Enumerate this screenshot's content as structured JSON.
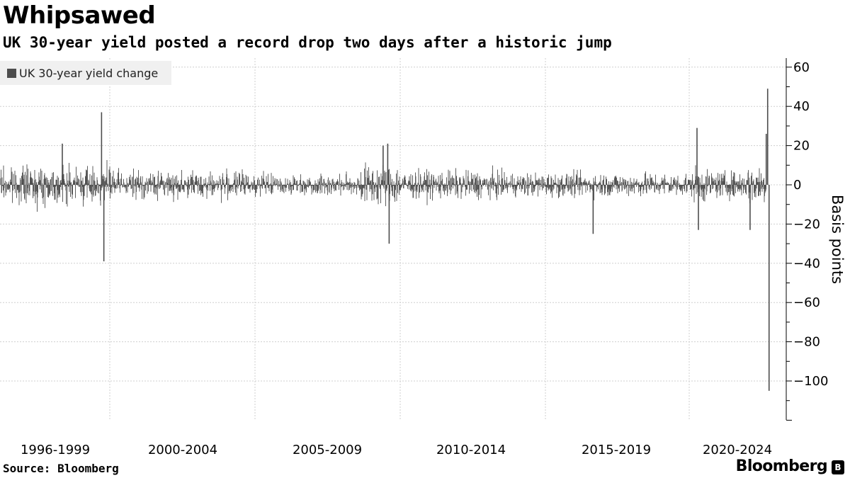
{
  "header": {
    "title": "Whipsawed",
    "subtitle": "UK 30-year yield posted a record drop two days after a historic jump"
  },
  "footer": {
    "source": "Source: Bloomberg",
    "brand": "Bloomberg",
    "brand_icon": "bloomberg-terminal-icon"
  },
  "chart_data": {
    "type": "bar",
    "title": "",
    "legend": {
      "entries": [
        "UK 30-year yield change"
      ],
      "placement": "top-left"
    },
    "series": [
      {
        "name": "UK 30-year yield change",
        "color": "#4d4d4d",
        "extremes": [
          {
            "date": "1998-09",
            "value": 37
          },
          {
            "date": "1998-10",
            "value": -39
          },
          {
            "date": "1997-04",
            "value": 21
          },
          {
            "date": "2008-11",
            "value": 20
          },
          {
            "date": "2009-01",
            "value": 21
          },
          {
            "date": "2009-01",
            "value": -30
          },
          {
            "date": "2016-06",
            "value": -25
          },
          {
            "date": "2020-03",
            "value": 29
          },
          {
            "date": "2020-03",
            "value": -23
          },
          {
            "date": "2022-02",
            "value": -23
          },
          {
            "date": "2022-09",
            "value": 26
          },
          {
            "date": "2022-09",
            "value": 49
          },
          {
            "date": "2022-09",
            "value": -105
          }
        ]
      }
    ],
    "x_tick_labels": [
      "1996-1999",
      "2000-2004",
      "2005-2009",
      "2010-2014",
      "2015-2019",
      "2020-2024"
    ],
    "xlim": [
      "1995-01",
      "2022-10"
    ],
    "ylabel": "Basis points",
    "y_ticks": [
      60,
      40,
      20,
      0,
      -20,
      -40,
      -60,
      -80,
      -100
    ],
    "ylim": [
      -120,
      65
    ],
    "y_axis_side": "right",
    "grid": true
  }
}
